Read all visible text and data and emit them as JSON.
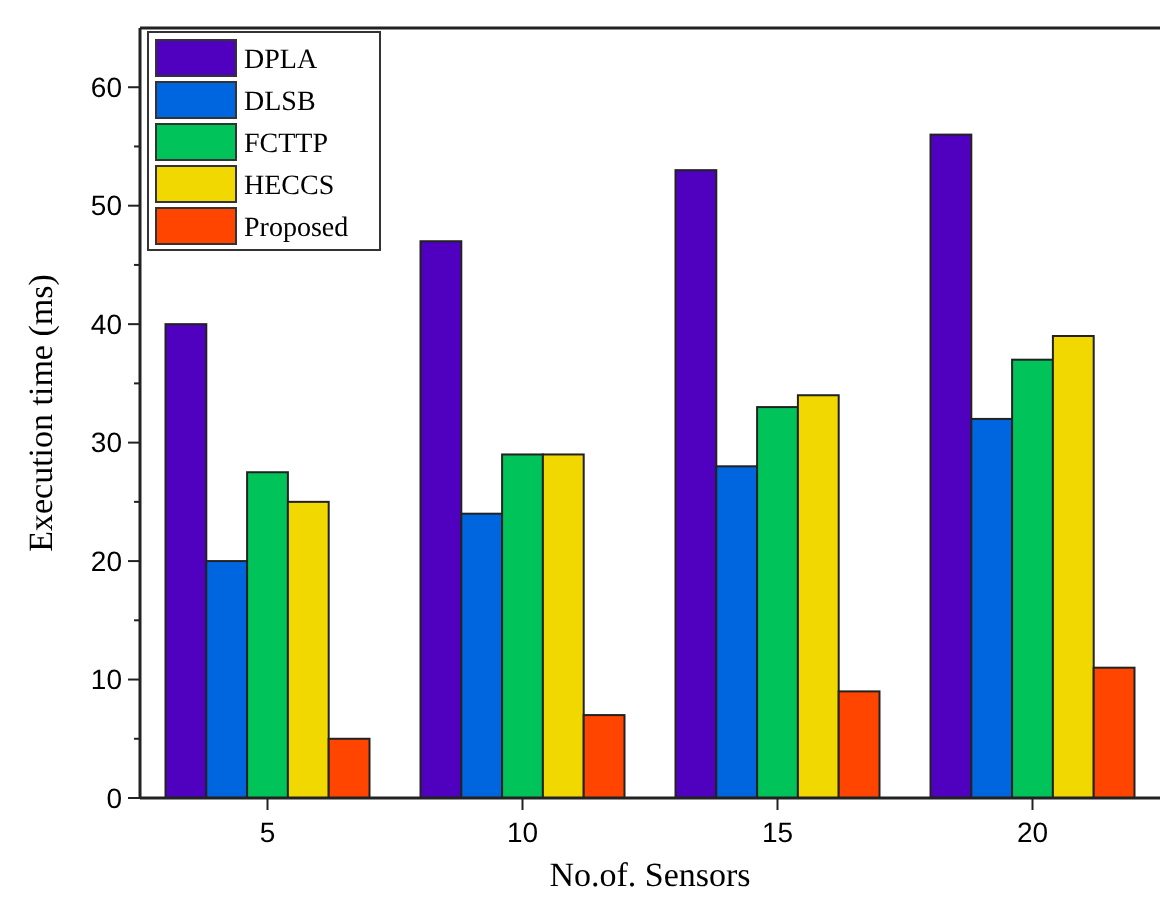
{
  "chart_data": {
    "type": "bar",
    "xlabel": "No.of. Sensors",
    "ylabel": "Execution time (ms)",
    "categories": [
      "5",
      "10",
      "15",
      "20"
    ],
    "series": [
      {
        "name": "DPLA",
        "color": "#5000bf",
        "values": [
          40,
          47,
          53,
          56
        ]
      },
      {
        "name": "DLSB",
        "color": "#0066e0",
        "values": [
          20,
          24,
          28,
          32
        ]
      },
      {
        "name": "FCTTP",
        "color": "#00c45a",
        "values": [
          27.5,
          29,
          33,
          37
        ]
      },
      {
        "name": "HECCS",
        "color": "#f0d800",
        "values": [
          25,
          29,
          34,
          39
        ]
      },
      {
        "name": "Proposed",
        "color": "#ff4500",
        "values": [
          5,
          7,
          9,
          11
        ]
      }
    ],
    "ylim": [
      0,
      65
    ],
    "yticks": [
      0,
      {
        "value": 5,
        "label": null
      },
      10,
      {
        "value": 15,
        "label": null
      },
      20,
      {
        "value": 25,
        "label": null
      },
      30,
      {
        "value": 35,
        "label": null
      },
      40,
      {
        "value": 45,
        "label": null
      },
      50,
      {
        "value": 55,
        "label": null
      },
      60
    ],
    "legend": "top left",
    "grid": false
  }
}
